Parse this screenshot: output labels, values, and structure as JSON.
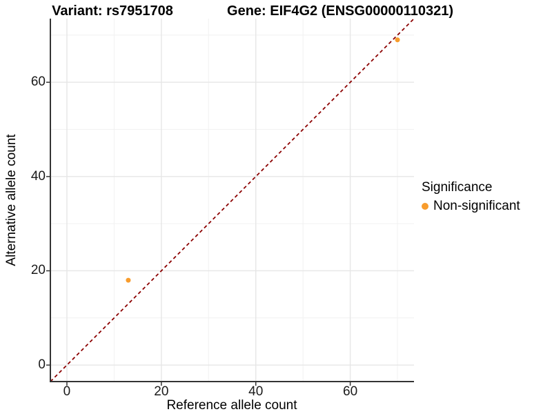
{
  "chart_data": {
    "type": "scatter",
    "title_left": "Variant: rs7951708",
    "title_right": "Gene: EIF4G2 (ENSG00000110321)",
    "xlabel": "Reference allele count",
    "ylabel": "Alternative allele count",
    "xlim": [
      -3.5,
      73.5
    ],
    "ylim": [
      -3.5,
      73.5
    ],
    "x_ticks": [
      0,
      20,
      40,
      60
    ],
    "y_ticks": [
      0,
      20,
      40,
      60
    ],
    "x_minor_ticks": [
      10,
      30,
      50,
      70
    ],
    "y_minor_ticks": [
      10,
      30,
      50,
      70
    ],
    "grid": "major+minor",
    "legend_position": "right",
    "legend_title": "Significance",
    "series": [
      {
        "name": "Non-significant",
        "color": "#F89C2C",
        "points": [
          [
            13,
            18
          ],
          [
            70,
            69
          ]
        ]
      }
    ],
    "reference_line": {
      "kind": "identity",
      "equation": "y = x",
      "color": "#8B0000",
      "style": "dashed"
    }
  },
  "colors": {
    "point_orange": "#F89C2C",
    "reference_dark_red": "#8B0000",
    "grid_major": "#E6E6E6",
    "grid_minor": "#F1F1F1",
    "axis_line": "#333333",
    "text": "#000000"
  }
}
